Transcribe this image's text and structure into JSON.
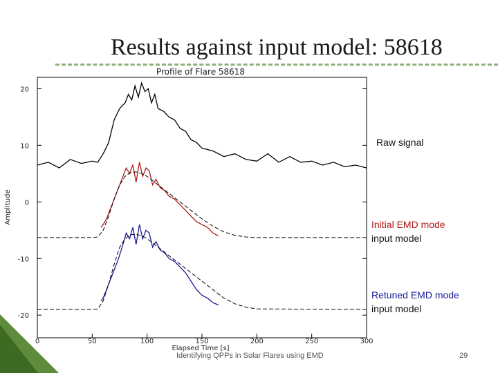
{
  "slide": {
    "title": "Results against input model: 58618",
    "footer": "Identifying QPPs in Solar Flares using EMD",
    "page_number": "29"
  },
  "labels": {
    "raw": "Raw signal",
    "initial_line1": "Initial EMD mode",
    "initial_line2": "input model",
    "retuned_line1": "Retuned EMD mode",
    "retuned_line2": "input model"
  },
  "colors": {
    "title_rule": "#8fb07a",
    "corner_accent": "#5e8c3c",
    "initial_mode": "#b01818",
    "retuned_mode": "#1a1a9a",
    "raw": "#000000",
    "model": "#000000"
  },
  "chart_data": {
    "type": "line",
    "title": "Profile of Flare 58618",
    "xlabel": "Elapsed Time [s]",
    "ylabel": "Amplitude",
    "xlim": [
      0,
      300
    ],
    "ylim": [
      -24,
      22
    ],
    "xticks": [
      "0",
      "50",
      "100",
      "150",
      "200",
      "250",
      "300"
    ],
    "yticks": [
      "20",
      "10",
      "0",
      "-10",
      "-20"
    ],
    "xtick_values": [
      0,
      50,
      100,
      150,
      200,
      250,
      300
    ],
    "ytick_values": [
      20,
      10,
      0,
      -10,
      -20
    ],
    "grid": false,
    "series": [
      {
        "key": "raw",
        "color": "#000000",
        "x": [
          0,
          10,
          20,
          30,
          40,
          50,
          55,
          60,
          65,
          70,
          75,
          80,
          83,
          86,
          89,
          92,
          95,
          98,
          101,
          104,
          107,
          110,
          115,
          120,
          125,
          130,
          135,
          140,
          145,
          150,
          160,
          170,
          180,
          190,
          200,
          210,
          220,
          230,
          240,
          250,
          260,
          270,
          280,
          290,
          300
        ],
        "y": [
          6.5,
          7.0,
          6.0,
          7.5,
          6.8,
          7.2,
          7.0,
          8.5,
          10.5,
          14.5,
          16.5,
          17.5,
          19.0,
          18.0,
          20.5,
          18.5,
          21.0,
          19.5,
          20.0,
          17.5,
          19.0,
          16.5,
          16.0,
          15.0,
          14.5,
          13.0,
          12.5,
          11.0,
          10.5,
          9.5,
          9.0,
          8.0,
          8.5,
          7.5,
          7.2,
          8.5,
          7.0,
          8.0,
          7.0,
          7.2,
          6.5,
          7.0,
          6.2,
          6.5,
          6.0
        ]
      },
      {
        "key": "initial_mode",
        "color": "#b01818",
        "x": [
          58,
          60,
          63,
          66,
          70,
          74,
          78,
          81,
          84,
          87,
          90,
          93,
          96,
          99,
          102,
          105,
          108,
          112,
          116,
          120,
          125,
          130,
          135,
          140,
          145,
          150,
          155,
          160,
          165
        ],
        "y": [
          -4.5,
          -4.0,
          -3.0,
          -1.5,
          0.5,
          2.5,
          4.5,
          6.0,
          5.0,
          6.5,
          3.5,
          7.0,
          4.5,
          6.0,
          5.5,
          3.0,
          4.0,
          2.5,
          2.0,
          1.0,
          0.5,
          -0.5,
          -1.5,
          -2.5,
          -3.5,
          -4.0,
          -4.5,
          -5.5,
          -6.0
        ]
      },
      {
        "key": "initial_model",
        "color": "#000000",
        "x": [
          0,
          40,
          50,
          55,
          60,
          65,
          70,
          75,
          80,
          85,
          90,
          95,
          100,
          110,
          120,
          130,
          140,
          150,
          160,
          170,
          180,
          190,
          200,
          300
        ],
        "y": [
          -6.3,
          -6.3,
          -6.3,
          -6.2,
          -5.0,
          -2.5,
          0.5,
          3.0,
          4.5,
          5.2,
          5.3,
          5.0,
          4.5,
          3.0,
          1.5,
          0.0,
          -1.5,
          -3.0,
          -4.3,
          -5.3,
          -5.9,
          -6.2,
          -6.3,
          -6.3
        ]
      },
      {
        "key": "retuned_mode",
        "color": "#1a1a9a",
        "x": [
          58,
          60,
          63,
          66,
          70,
          74,
          78,
          81,
          84,
          87,
          90,
          93,
          96,
          99,
          102,
          105,
          108,
          112,
          116,
          120,
          125,
          130,
          135,
          140,
          145,
          150,
          155,
          160,
          165
        ],
        "y": [
          -17.5,
          -17.0,
          -15.5,
          -14.0,
          -12.0,
          -10.0,
          -7.5,
          -5.5,
          -6.5,
          -4.5,
          -7.5,
          -4.0,
          -6.5,
          -5.0,
          -5.5,
          -8.0,
          -7.0,
          -8.5,
          -9.0,
          -10.0,
          -10.5,
          -11.5,
          -12.5,
          -14.0,
          -15.5,
          -16.5,
          -17.0,
          -17.8,
          -18.2
        ]
      },
      {
        "key": "retuned_model",
        "color": "#000000",
        "x": [
          0,
          40,
          50,
          55,
          60,
          65,
          70,
          75,
          80,
          85,
          90,
          95,
          100,
          110,
          120,
          130,
          140,
          150,
          160,
          170,
          180,
          190,
          200,
          300
        ],
        "y": [
          -19.0,
          -19.0,
          -19.0,
          -18.9,
          -17.5,
          -14.5,
          -11.0,
          -8.0,
          -6.5,
          -5.8,
          -5.7,
          -6.0,
          -6.5,
          -8.0,
          -9.5,
          -11.0,
          -12.5,
          -14.0,
          -15.5,
          -17.0,
          -18.0,
          -18.6,
          -18.9,
          -19.0
        ]
      }
    ]
  }
}
